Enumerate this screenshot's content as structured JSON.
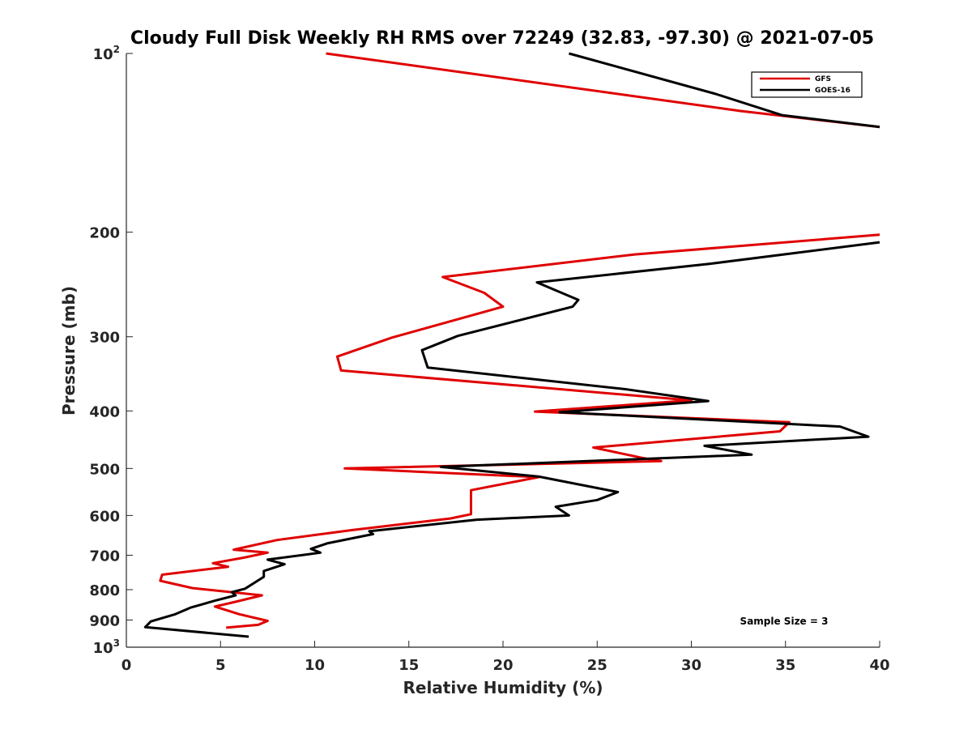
{
  "chart_data": {
    "type": "line",
    "title": "Cloudy Full Disk Weekly RH RMS over 72249 (32.83, -97.30) @ 2021-07-05",
    "xlabel": "Relative Humidity (%)",
    "ylabel": "Pressure (mb)",
    "xlim": [
      0,
      40
    ],
    "ylim": [
      100,
      1000
    ],
    "yscale": "log",
    "y_reversed": true,
    "grid": false,
    "legend_position": "top-right",
    "xticks": [
      0,
      5,
      10,
      15,
      20,
      25,
      30,
      35,
      40
    ],
    "xtick_labels": [
      "0",
      "5",
      "10",
      "15",
      "20",
      "25",
      "30",
      "35",
      "40"
    ],
    "yticks": [
      100,
      200,
      300,
      400,
      500,
      600,
      700,
      800,
      900,
      1000
    ],
    "ytick_labels": [
      {
        "base": "10",
        "exp": "2"
      },
      {
        "base": "200",
        "exp": ""
      },
      {
        "base": "300",
        "exp": ""
      },
      {
        "base": "400",
        "exp": ""
      },
      {
        "base": "500",
        "exp": ""
      },
      {
        "base": "600",
        "exp": ""
      },
      {
        "base": "700",
        "exp": ""
      },
      {
        "base": "800",
        "exp": ""
      },
      {
        "base": "900",
        "exp": ""
      },
      {
        "base": "10",
        "exp": "3"
      }
    ],
    "annotation": "Sample Size = 3",
    "series": [
      {
        "name": "GFS",
        "color": "#e00000",
        "segments": [
          [
            [
              10.6,
              100
            ],
            [
              32.6,
              125
            ],
            [
              40,
              133
            ]
          ],
          [
            [
              40,
              202
            ],
            [
              27,
              218
            ],
            [
              16.8,
              238
            ],
            [
              19,
              253
            ],
            [
              20,
              267
            ],
            [
              14.1,
              301
            ],
            [
              11.2,
              324
            ],
            [
              11.4,
              342
            ],
            [
              30,
              384
            ],
            [
              21.7,
              401
            ],
            [
              35.2,
              418
            ],
            [
              34.7,
              433
            ],
            [
              24.8,
              461
            ],
            [
              27.4,
              480
            ],
            [
              28.4,
              486
            ],
            [
              11.6,
              500
            ],
            [
              21.9,
              517
            ],
            [
              18.3,
              544
            ],
            [
              18.3,
              565
            ],
            [
              18.3,
              597
            ],
            [
              17.2,
              607
            ],
            [
              12,
              635
            ],
            [
              8,
              660
            ],
            [
              5.7,
              685
            ],
            [
              7.5,
              693
            ],
            [
              6.2,
              707
            ],
            [
              4.6,
              722
            ],
            [
              5.4,
              732
            ],
            [
              1.9,
              755
            ],
            [
              1.8,
              773
            ],
            [
              3.5,
              795
            ],
            [
              7.2,
              818
            ],
            [
              5.7,
              840
            ],
            [
              4.7,
              854
            ],
            [
              6,
              880
            ],
            [
              7.5,
              903
            ],
            [
              7,
              917
            ],
            [
              5.3,
              927
            ]
          ]
        ]
      },
      {
        "name": "GOES-16",
        "color": "#000000",
        "segments": [
          [
            [
              23.5,
              100
            ],
            [
              31.3,
              117
            ],
            [
              34.8,
              127
            ],
            [
              40,
              133
            ]
          ],
          [
            [
              40,
              208
            ],
            [
              31,
              226
            ],
            [
              21.8,
              243
            ],
            [
              24,
              260
            ],
            [
              23.7,
              267
            ],
            [
              17.6,
              299
            ],
            [
              15.7,
              316
            ],
            [
              16,
              338
            ],
            [
              26.6,
              368
            ],
            [
              30.9,
              385
            ],
            [
              23,
              402
            ],
            [
              37.9,
              425
            ],
            [
              39.4,
              442
            ],
            [
              30.7,
              458
            ],
            [
              33.2,
              474
            ],
            [
              16.7,
              497
            ],
            [
              21.9,
              516
            ],
            [
              26.1,
              548
            ],
            [
              25,
              565
            ],
            [
              22.8,
              580
            ],
            [
              23.5,
              600
            ],
            [
              18.6,
              610
            ],
            [
              12.9,
              638
            ],
            [
              13.1,
              645
            ],
            [
              10.7,
              668
            ],
            [
              9.8,
              683
            ],
            [
              10.3,
              693
            ],
            [
              7.5,
              712
            ],
            [
              8.4,
              725
            ],
            [
              7.3,
              744
            ],
            [
              7.3,
              761
            ],
            [
              6.3,
              797
            ],
            [
              5.6,
              808
            ],
            [
              5.8,
              818
            ],
            [
              4.7,
              835
            ],
            [
              3.4,
              858
            ],
            [
              2.6,
              880
            ],
            [
              1.3,
              905
            ],
            [
              1,
              925
            ],
            [
              6.5,
              960
            ]
          ]
        ]
      }
    ]
  }
}
